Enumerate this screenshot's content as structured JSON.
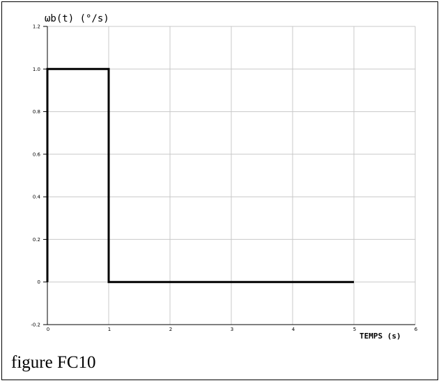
{
  "chart_data": {
    "type": "line",
    "ylabel": "ωb(t) (°/s)",
    "xlabel": "TEMPS (s)",
    "xlim": [
      0,
      6
    ],
    "ylim": [
      -0.2,
      1.2
    ],
    "x_ticks": [
      "0",
      "1",
      "2",
      "3",
      "4",
      "5",
      "6"
    ],
    "y_ticks": [
      "1.2",
      "1.0",
      "0.8",
      "0.6",
      "0.4",
      "0.2",
      "0",
      "-0.2"
    ],
    "grid": true,
    "series": [
      {
        "x": [
          0,
          0,
          1,
          1,
          5
        ],
        "y": [
          0,
          1,
          1,
          0,
          0
        ]
      }
    ]
  },
  "caption": "figure FC10"
}
